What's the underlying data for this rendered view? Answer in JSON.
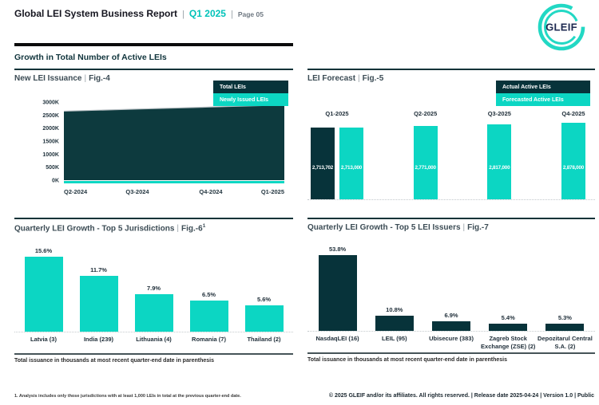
{
  "shared": {
    "pipe": "|",
    "issuance_note": "Total issuance in thousands at most recent quarter-end date in parenthesis"
  },
  "header": {
    "title": "Global LEI System Business Report",
    "quarter": "Q1 2025",
    "page": "Page 05",
    "section_title": "Growth in Total Number of Active LEIs",
    "logo_text": "GLEIF"
  },
  "colors": {
    "teal": "#0cd6c3",
    "dark_teal": "#07333a",
    "area_fill": "#0d3a3e",
    "area_top_line": "#b6bec2",
    "accent_text_teal": "#00c3b9",
    "rule_black": "#0b0b0c"
  },
  "panels": {
    "fig4": {
      "title": "New LEI Issuance",
      "fig_label": "Fig.-4",
      "legend": [
        "Total LEIs",
        "Newly Issued LEIs"
      ]
    },
    "fig5": {
      "title": "LEI Forecast",
      "fig_label": "Fig.-5",
      "legend": [
        "Actual Active LEIs",
        "Forecasted Active LEIs"
      ]
    },
    "fig6": {
      "title": "Quarterly LEI Growth - Top 5 Jurisdictions",
      "fig_label": "Fig.-6",
      "footnote_ref": "1"
    },
    "fig7": {
      "title": "Quarterly LEI Growth - Top 5 LEI Issuers",
      "fig_label": "Fig.-7"
    }
  },
  "chart_data": [
    {
      "type": "area",
      "title": "New LEI Issuance",
      "fig": "Fig.-4",
      "categories": [
        "Q2-2024",
        "Q3-2024",
        "Q4-2024",
        "Q1-2025"
      ],
      "series": [
        {
          "name": "Total LEIs",
          "values": [
            2650000,
            2730000,
            2810000,
            2890000
          ]
        },
        {
          "name": "Newly Issued LEIs",
          "values": [
            60000,
            60000,
            60000,
            60000
          ]
        }
      ],
      "y_ticks": [
        "0K",
        "500K",
        "1000K",
        "1500K",
        "2000K",
        "2500K",
        "3000K"
      ],
      "ylim": [
        0,
        3000000
      ],
      "legend": [
        "Total LEIs",
        "Newly Issued LEIs"
      ],
      "legend_position": "top-right",
      "grid": false
    },
    {
      "type": "bar",
      "title": "LEI Forecast",
      "fig": "Fig.-5",
      "categories": [
        "Q1-2025",
        "Q2-2025",
        "Q3-2025",
        "Q4-2025"
      ],
      "series": [
        {
          "name": "Actual Active LEIs",
          "values": [
            2713702,
            null,
            null,
            null
          ],
          "labels": [
            "2,713,702",
            "",
            "",
            ""
          ]
        },
        {
          "name": "Forecasted Active LEIs",
          "values": [
            2713000,
            2771000,
            2817000,
            2878000
          ],
          "labels": [
            "2,713,000",
            "2,771,000",
            "2,817,000",
            "2,878,000"
          ]
        }
      ],
      "legend": [
        "Actual Active LEIs",
        "Forecasted Active LEIs"
      ],
      "legend_position": "top-right",
      "grid": false
    },
    {
      "type": "bar",
      "title": "Quarterly LEI Growth - Top 5 Jurisdictions",
      "fig": "Fig.-6",
      "categories": [
        "Latvia (3)",
        "India (239)",
        "Lithuania (4)",
        "Romania (7)",
        "Thailand (2)"
      ],
      "values": [
        15.6,
        11.7,
        7.9,
        6.5,
        5.6
      ],
      "labels": [
        "15.6%",
        "11.7%",
        "7.9%",
        "6.5%",
        "5.6%"
      ],
      "unit": "%",
      "grid": false
    },
    {
      "type": "bar",
      "title": "Quarterly LEI Growth - Top 5 LEI Issuers",
      "fig": "Fig.-7",
      "categories": [
        "NasdaqLEI (16)",
        "LEIL (95)",
        "Ubisecure (383)",
        "Zagreb Stock Exchange (ZSE) (2)",
        "Depozitarul Central S.A. (2)"
      ],
      "values": [
        53.8,
        10.8,
        6.9,
        5.4,
        5.3
      ],
      "labels": [
        "53.8%",
        "10.8%",
        "6.9%",
        "5.4%",
        "5.3%"
      ],
      "unit": "%",
      "grid": false
    }
  ],
  "footer": {
    "footnote": "1. Analysis includes only those jurisdictions with at least 1,000 LEIs in total at the previous quarter-end date.",
    "copyright": "© 2025 GLEIF and/or its affiliates. All rights reserved. | Release date 2025-04-24 | Version 1.0 | Public"
  }
}
